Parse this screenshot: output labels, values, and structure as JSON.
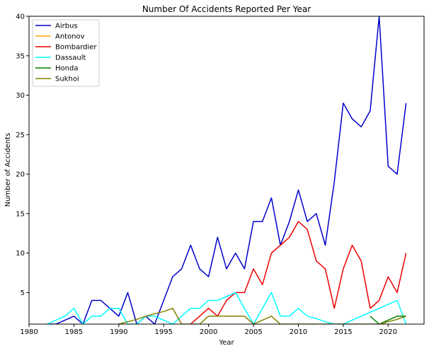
{
  "chart_data": {
    "type": "line",
    "title": "Number Of Accidents Reported Per Year",
    "xlabel": "Year",
    "ylabel": "Number of Accidents",
    "xlim": [
      1980,
      2024
    ],
    "ylim": [
      1,
      40
    ],
    "xticks": [
      1980,
      1985,
      1990,
      1995,
      2000,
      2005,
      2010,
      2015,
      2020
    ],
    "yticks": [
      5,
      10,
      15,
      20,
      25,
      30,
      35,
      40
    ],
    "grid": false,
    "legend_position": "top-left",
    "series": [
      {
        "name": "Airbus",
        "color": "#0000cc",
        "x": [
          1982,
          1983,
          1984,
          1985,
          1986,
          1987,
          1988,
          1989,
          1990,
          1991,
          1992,
          1993,
          1994,
          1995,
          1996,
          1997,
          1998,
          1999,
          2000,
          2001,
          2002,
          2003,
          2004,
          2005,
          2006,
          2007,
          2008,
          2009,
          2010,
          2011,
          2012,
          2013,
          2014,
          2015,
          2016,
          2017,
          2018,
          2019,
          2020,
          2021,
          2022
        ],
        "y": [
          1,
          1,
          1.5,
          2,
          1,
          4,
          4,
          3,
          2,
          5,
          1,
          2,
          1,
          4,
          7,
          8,
          11,
          8,
          7,
          12,
          8,
          10,
          8,
          14,
          14,
          17,
          11,
          14,
          18,
          14,
          15,
          11,
          19,
          29,
          27,
          26,
          28,
          40,
          21,
          20,
          29
        ]
      },
      {
        "name": "Antonov",
        "color": "#ffa500",
        "x": [],
        "y": []
      },
      {
        "name": "Bombardier",
        "color": "#ee0000",
        "x": [
          1998,
          1999,
          2000,
          2001,
          2002,
          2003,
          2004,
          2005,
          2006,
          2007,
          2008,
          2009,
          2010,
          2011,
          2012,
          2013,
          2014,
          2015,
          2016,
          2017,
          2018,
          2019,
          2020,
          2021,
          2022
        ],
        "y": [
          1,
          2,
          3,
          2,
          4,
          5,
          5,
          8,
          6,
          10,
          11,
          12,
          14,
          13,
          9,
          8,
          3,
          8,
          11,
          9,
          3,
          4,
          7,
          5,
          10
        ]
      },
      {
        "name": "Dassault",
        "color": "#00ffff",
        "x": [
          1982,
          1983,
          1984,
          1985,
          1986,
          1987,
          1988,
          1989,
          1990,
          1991,
          1992,
          1993,
          1994,
          1995,
          1996,
          1997,
          1998,
          1999,
          2000,
          2001,
          2002,
          2003,
          2004,
          2005,
          2006,
          2007,
          2008,
          2009,
          2010,
          2011,
          2012,
          2013,
          2014,
          2015,
          2016,
          2017,
          2018,
          2019,
          2020,
          2021,
          2022
        ],
        "y": [
          1,
          1.5,
          2,
          3,
          1,
          2,
          2,
          3,
          3,
          1,
          1,
          2,
          2,
          1.5,
          1,
          2,
          3,
          3,
          4,
          4,
          4.5,
          5,
          3,
          1,
          3,
          5,
          2,
          2,
          3,
          2,
          1.7,
          1.3,
          1,
          1,
          1.5,
          2,
          2.5,
          3,
          3.5,
          4,
          1
        ]
      },
      {
        "name": "Honda",
        "color": "#008000",
        "x": [
          2018,
          2019,
          2020,
          2021,
          2022
        ],
        "y": [
          2,
          1,
          1.5,
          2,
          2
        ]
      },
      {
        "name": "Sukhoi",
        "color": "#808000",
        "x": [
          1990,
          1991,
          1992,
          1993,
          1994,
          1995,
          1996,
          1997,
          1998,
          1999,
          2000,
          2001,
          2002,
          2003,
          2004,
          2005,
          2006,
          2007,
          2008,
          2009,
          2010,
          2011,
          2012,
          2013,
          2014,
          2015,
          2016,
          2017,
          2018,
          2019,
          2020,
          2021,
          2022
        ],
        "y": [
          1,
          1.3,
          1.6,
          2,
          2.3,
          2.6,
          3,
          1,
          1,
          1,
          2,
          2,
          2,
          2,
          2,
          1,
          1.5,
          2,
          1,
          1,
          1,
          1,
          1,
          1,
          1,
          1,
          1,
          1,
          1,
          1,
          1.3,
          1.6,
          2
        ]
      }
    ]
  }
}
